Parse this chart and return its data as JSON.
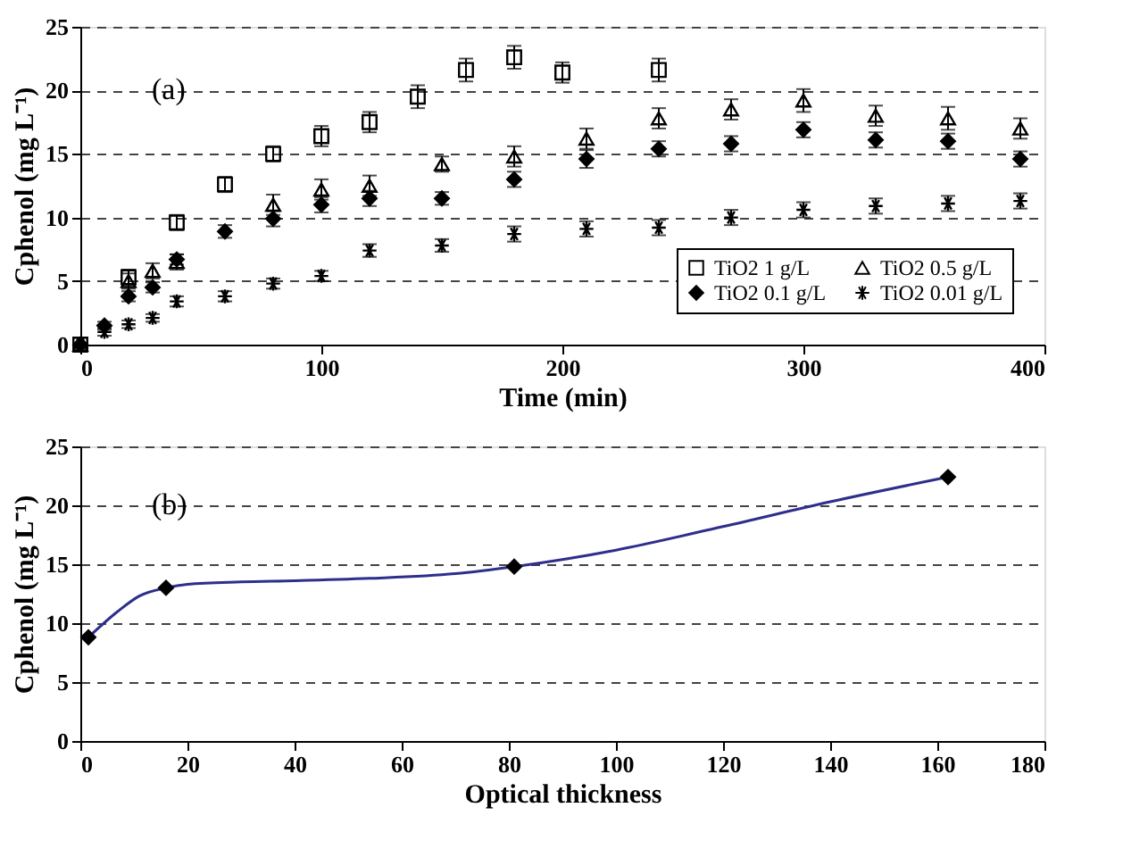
{
  "chart_data": [
    {
      "type": "scatter",
      "xlabel": "Time (min)",
      "ylabel": "Cphenol (mg L⁻¹)",
      "annotations": [
        "(a)"
      ],
      "xlim": [
        0,
        400
      ],
      "xticks": [
        0,
        100,
        200,
        300,
        400
      ],
      "ylim": [
        0,
        25
      ],
      "yticks": [
        0,
        5,
        10,
        15,
        20,
        25
      ],
      "grid": "y",
      "legend": "bottom right",
      "series": [
        {
          "name": "TiO2 1 g/L",
          "color": "#000000",
          "marker": "square",
          "x": [
            0,
            20,
            40,
            60,
            80,
            100,
            120,
            140,
            160,
            180,
            200,
            240
          ],
          "values": [
            0,
            5.3,
            9.6,
            12.6,
            15,
            16.4,
            17.5,
            19.5,
            21.6,
            22.6,
            21.4,
            21.6
          ],
          "errors": [
            null,
            0.6,
            0.6,
            0.6,
            0.6,
            0.8,
            0.8,
            0.9,
            0.9,
            0.9,
            0.8,
            0.9
          ]
        },
        {
          "name": "TiO2 0.5 g/L",
          "color": "#000000",
          "marker": "triangle",
          "x": [
            0,
            10,
            20,
            30,
            40,
            60,
            80,
            100,
            120,
            150,
            180,
            210,
            240,
            270,
            300,
            330,
            360,
            390
          ],
          "values": [
            0,
            null,
            5,
            5.8,
            6.5,
            null,
            11,
            12.2,
            12.5,
            14.2,
            14.8,
            16.2,
            17.8,
            18.5,
            19.2,
            18,
            17.8,
            17
          ],
          "errors": [
            null,
            null,
            0.6,
            0.6,
            0.6,
            null,
            0.8,
            0.8,
            0.8,
            0.6,
            0.8,
            0.8,
            0.8,
            0.8,
            0.9,
            0.8,
            0.9,
            0.8
          ]
        },
        {
          "name": "TiO2 0.1 g/L",
          "color": "#000000",
          "marker": "diamond",
          "x": [
            0,
            10,
            20,
            30,
            40,
            60,
            80,
            100,
            120,
            150,
            180,
            210,
            240,
            270,
            300,
            330,
            360,
            390
          ],
          "values": [
            0,
            1.5,
            3.8,
            4.5,
            6.7,
            8.9,
            9.9,
            11,
            11.5,
            11.5,
            13,
            14.6,
            15.4,
            15.8,
            16.9,
            16.1,
            16,
            14.6
          ],
          "errors": [
            null,
            0.3,
            0.4,
            0.4,
            0.4,
            0.5,
            0.6,
            0.6,
            0.6,
            0.5,
            0.6,
            0.7,
            0.6,
            0.6,
            0.6,
            0.6,
            0.6,
            0.6
          ]
        },
        {
          "name": "TiO2 0.01 g/L",
          "color": "#000000",
          "marker": "cross",
          "x": [
            0,
            10,
            20,
            30,
            40,
            60,
            80,
            100,
            120,
            150,
            180,
            210,
            240,
            270,
            300,
            330,
            360,
            390
          ],
          "values": [
            0,
            1,
            1.6,
            2.1,
            3.4,
            3.8,
            4.8,
            5.4,
            7.4,
            7.8,
            8.7,
            9.1,
            9.2,
            10,
            10.6,
            10.9,
            11.1,
            11.3
          ],
          "errors": [
            null,
            0.3,
            0.3,
            0.3,
            0.4,
            0.4,
            0.4,
            0.4,
            0.5,
            0.5,
            0.6,
            0.6,
            0.6,
            0.6,
            0.6,
            0.6,
            0.6,
            0.6
          ]
        }
      ]
    },
    {
      "type": "line",
      "xlabel": "Optical thickness",
      "ylabel": "Cphenol (mg L⁻¹)",
      "annotations": [
        "(b)"
      ],
      "xlim": [
        0,
        180
      ],
      "xticks": [
        0,
        20,
        40,
        60,
        80,
        100,
        120,
        140,
        160,
        180
      ],
      "ylim": [
        0,
        25
      ],
      "yticks": [
        0,
        5,
        10,
        15,
        20,
        25
      ],
      "grid": "y",
      "series": [
        {
          "type": "line",
          "color": "#2e2e8c",
          "marker": "none",
          "x": [
            1.5,
            7,
            11,
            16,
            20,
            30,
            40,
            54,
            70,
            81,
            100,
            120,
            140,
            162
          ],
          "values": [
            8.8,
            11,
            12.3,
            13,
            13.3,
            13.5,
            13.6,
            13.8,
            14.2,
            14.8,
            16.2,
            18.2,
            20.3,
            22.4
          ]
        },
        {
          "type": "scatter",
          "color": "#000000",
          "marker": "diamond",
          "x": [
            1.5,
            16,
            81,
            162
          ],
          "values": [
            8.8,
            13,
            14.8,
            22.4
          ]
        }
      ]
    }
  ]
}
